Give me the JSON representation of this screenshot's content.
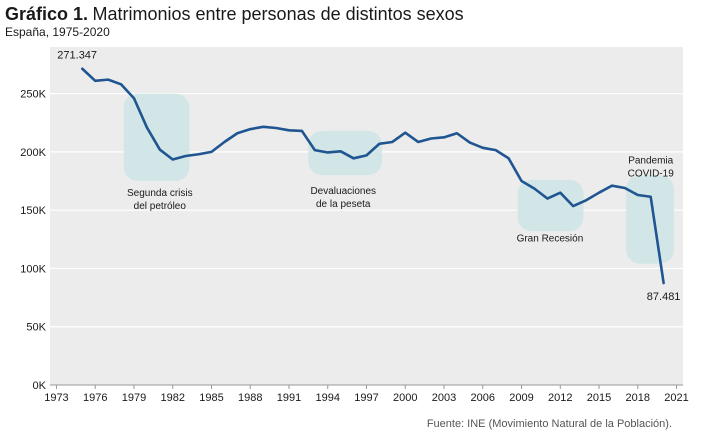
{
  "header": {
    "title_bold": "Gráfico 1.",
    "title_rest": "Matrimonios entre personas de distintos sexos",
    "subtitle": "España, 1975-2020"
  },
  "source": "Fuente: INE (Movimiento Natural de la Población).",
  "colors": {
    "line": "#1f5590",
    "highlight": "#cfe6e8",
    "grid": "#b0b0b0",
    "plot_bg": "#ececec",
    "text": "#1a1a1a"
  },
  "chart_data": {
    "type": "line",
    "title": "Matrimonios entre personas de distintos sexos",
    "subtitle": "España, 1975-2020",
    "ylim": [
      0,
      290000
    ],
    "xlim": [
      1972.5,
      2021.5
    ],
    "yticks": [
      0,
      50000,
      100000,
      150000,
      200000,
      250000
    ],
    "ytick_labels": [
      "0K",
      "50K",
      "100K",
      "150K",
      "200K",
      "250K"
    ],
    "xticks": [
      1973,
      1976,
      1979,
      1982,
      1985,
      1988,
      1991,
      1994,
      1997,
      2000,
      2003,
      2006,
      2009,
      2012,
      2015,
      2018,
      2021
    ],
    "grid": true,
    "x": [
      1975,
      1976,
      1977,
      1978,
      1979,
      1980,
      1981,
      1982,
      1983,
      1984,
      1985,
      1986,
      1987,
      1988,
      1989,
      1990,
      1991,
      1992,
      1993,
      1994,
      1995,
      1996,
      1997,
      1998,
      1999,
      2000,
      2001,
      2002,
      2003,
      2004,
      2005,
      2006,
      2007,
      2008,
      2009,
      2010,
      2011,
      2012,
      2013,
      2014,
      2015,
      2016,
      2017,
      2018,
      2019,
      2020
    ],
    "y": [
      271347,
      261000,
      262000,
      258000,
      246000,
      221000,
      202000,
      193500,
      196500,
      198000,
      200000,
      208500,
      216000,
      219500,
      221500,
      220500,
      218500,
      218000,
      201500,
      199500,
      200500,
      194500,
      197000,
      207000,
      208500,
      216500,
      208500,
      211500,
      212500,
      216000,
      208000,
      203500,
      201500,
      194500,
      175000,
      168500,
      160000,
      165000,
      153500,
      158500,
      165000,
      171000,
      169000,
      163000,
      161500,
      87481
    ],
    "labels": [
      {
        "text": "271.347",
        "x": 1975,
        "y": 271347
      },
      {
        "text": "87.481",
        "x": 2020,
        "y": 87481
      }
    ],
    "annotations": [
      {
        "text": [
          "Segunda crisis",
          "del petróleo"
        ],
        "x0": 1978.2,
        "x1": 1983.3,
        "y0": 175000,
        "y1": 250000,
        "label_x": 1981.0,
        "label_y": 162000
      },
      {
        "text": [
          "Devaluaciones",
          "de la peseta"
        ],
        "x0": 1992.5,
        "x1": 1998.2,
        "y0": 180000,
        "y1": 218000,
        "label_x": 1995.2,
        "label_y": 164000
      },
      {
        "text": [
          "Gran Recesión"
        ],
        "x0": 2008.7,
        "x1": 2013.8,
        "y0": 132000,
        "y1": 176000,
        "label_x": 2011.2,
        "label_y": 123000
      },
      {
        "text": [
          "Pandemia",
          "COVID-19"
        ],
        "x0": 2017.1,
        "x1": 2020.8,
        "y0": 104000,
        "y1": 180000,
        "label_x": 2019.0,
        "label_y": 190000
      }
    ]
  }
}
